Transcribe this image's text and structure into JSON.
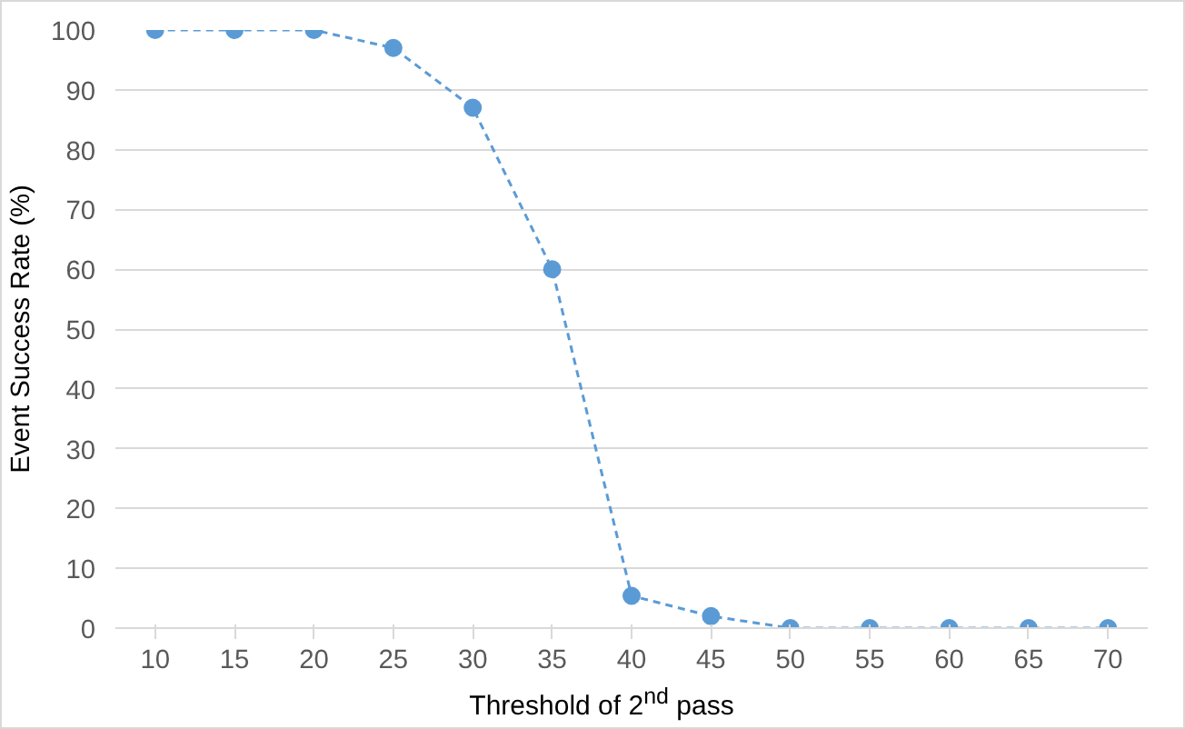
{
  "chart_data": {
    "type": "line",
    "xlabel": "Threshold of 2$^{nd}$ pass",
    "ylabel": "Event Success Rate (%)",
    "categories": [
      "10",
      "15",
      "20",
      "25",
      "30",
      "35",
      "40",
      "45",
      "50",
      "55",
      "60",
      "65",
      "70"
    ],
    "series": [
      {
        "color": "#5b9bd5",
        "values": [
          100,
          100,
          100,
          97,
          87,
          60,
          5.4,
          2,
          0,
          0,
          0,
          0,
          0
        ]
      }
    ],
    "ylim": [
      0,
      100
    ],
    "yticks": [
      0,
      10,
      20,
      30,
      40,
      50,
      60,
      70,
      80,
      90,
      100
    ],
    "grid": "y",
    "marker": "circle",
    "line_style": "dashed"
  }
}
